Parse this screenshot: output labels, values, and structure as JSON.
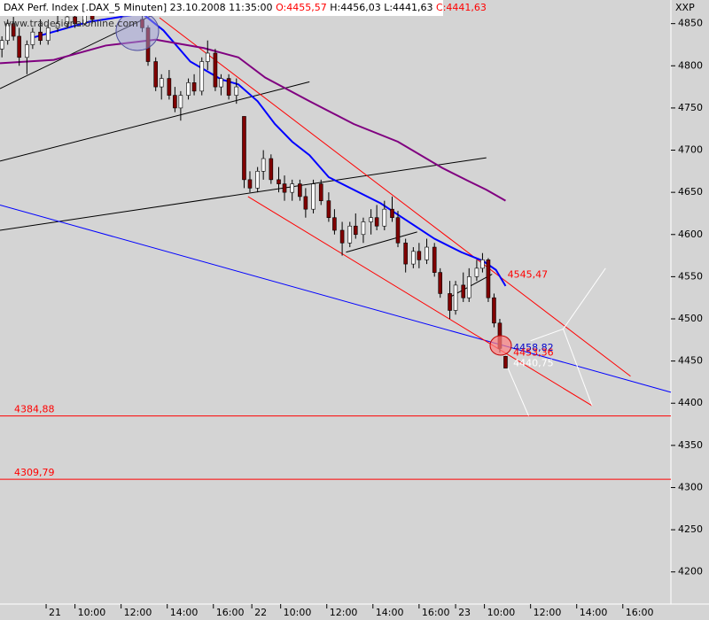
{
  "header": {
    "symbol": "DAX Perf. Index [.DAX_5 Minuten]",
    "datetime": "23.10.2008 11:35:00",
    "open": "O:4455,57",
    "high": "H:4456,03",
    "low": "L:4441,63",
    "close": "C:4441,63",
    "watermark": "www.tradesignalonline.com",
    "corner": "XXP"
  },
  "chart_data": {
    "type": "candlestick",
    "x": [
      1,
      4,
      7,
      10,
      14,
      17,
      21,
      25,
      30,
      35,
      39,
      44,
      48,
      74,
      77,
      81,
      84,
      88,
      91,
      94,
      98,
      101,
      105,
      108,
      112,
      115,
      119,
      123,
      127,
      130,
      134,
      137,
      141,
      145,
      148,
      152,
      156,
      159,
      163,
      167,
      171,
      174,
      178,
      182,
      185,
      189,
      193,
      196,
      200,
      204,
      207,
      211,
      215,
      218,
      222,
      226,
      229,
      234,
      237,
      241,
      244,
      248,
      251,
      254,
      257,
      260,
      263
    ],
    "open": [
      4820,
      4830,
      4850,
      4835,
      4810,
      4825,
      4840,
      4830,
      4845,
      4850,
      4858,
      4850,
      4860,
      4855,
      4845,
      4805,
      4775,
      4785,
      4765,
      4750,
      4765,
      4780,
      4770,
      4805,
      4815,
      4775,
      4785,
      4765,
      4740,
      4665,
      4655,
      4675,
      4690,
      4665,
      4660,
      4650,
      4660,
      4645,
      4630,
      4660,
      4640,
      4620,
      4605,
      4590,
      4610,
      4600,
      4615,
      4620,
      4610,
      4630,
      4620,
      4590,
      4565,
      4580,
      4570,
      4585,
      4555,
      4530,
      4510,
      4540,
      4525,
      4550,
      4560,
      4570,
      4525,
      4495,
      4455.57
    ],
    "high": [
      4835,
      4855,
      4858,
      4845,
      4830,
      4845,
      4855,
      4850,
      4860,
      4865,
      4862,
      4868,
      4870,
      4865,
      4848,
      4810,
      4790,
      4795,
      4775,
      4770,
      4785,
      4790,
      4810,
      4830,
      4820,
      4790,
      4790,
      4785,
      4740,
      4675,
      4680,
      4700,
      4695,
      4680,
      4670,
      4665,
      4665,
      4655,
      4665,
      4665,
      4650,
      4630,
      4615,
      4615,
      4625,
      4620,
      4630,
      4635,
      4640,
      4645,
      4628,
      4595,
      4585,
      4590,
      4595,
      4590,
      4560,
      4545,
      4545,
      4555,
      4560,
      4570,
      4578,
      4572,
      4530,
      4500,
      4456.03
    ],
    "low": [
      4810,
      4825,
      4830,
      4800,
      4790,
      4820,
      4825,
      4825,
      4840,
      4845,
      4845,
      4848,
      4850,
      4840,
      4800,
      4770,
      4760,
      4760,
      4745,
      4735,
      4760,
      4765,
      4765,
      4795,
      4770,
      4765,
      4760,
      4755,
      4655,
      4650,
      4650,
      4665,
      4660,
      4650,
      4640,
      4640,
      4640,
      4620,
      4625,
      4635,
      4615,
      4600,
      4575,
      4585,
      4595,
      4590,
      4600,
      4605,
      4605,
      4615,
      4585,
      4555,
      4560,
      4560,
      4565,
      4550,
      4525,
      4500,
      4505,
      4520,
      4520,
      4545,
      4555,
      4520,
      4490,
      4460,
      4441.63
    ],
    "close": [
      4830,
      4850,
      4835,
      4810,
      4825,
      4840,
      4830,
      4845,
      4850,
      4858,
      4850,
      4860,
      4855,
      4845,
      4805,
      4775,
      4785,
      4765,
      4750,
      4765,
      4780,
      4770,
      4805,
      4815,
      4775,
      4785,
      4765,
      4775,
      4665,
      4655,
      4675,
      4690,
      4665,
      4660,
      4650,
      4660,
      4645,
      4630,
      4660,
      4640,
      4620,
      4605,
      4590,
      4610,
      4600,
      4615,
      4620,
      4610,
      4630,
      4620,
      4590,
      4565,
      4580,
      4570,
      4585,
      4555,
      4530,
      4510,
      4540,
      4525,
      4550,
      4560,
      4570,
      4525,
      4495,
      4465,
      4441.63
    ],
    "xlim": [
      0,
      349
    ],
    "ylim": [
      4164,
      4878
    ],
    "yticks": [
      4200,
      4250,
      4300,
      4350,
      4400,
      4450,
      4500,
      4550,
      4600,
      4650,
      4700,
      4750,
      4800,
      4850
    ],
    "xticks": [
      {
        "value": 24,
        "label": "21"
      },
      {
        "value": 39,
        "label": "10:00"
      },
      {
        "value": 63,
        "label": "12:00"
      },
      {
        "value": 87,
        "label": "14:00"
      },
      {
        "value": 111,
        "label": "16:00"
      },
      {
        "value": 131,
        "label": "22"
      },
      {
        "value": 146,
        "label": "10:00"
      },
      {
        "value": 170,
        "label": "12:00"
      },
      {
        "value": 194,
        "label": "14:00"
      },
      {
        "value": 218,
        "label": "16:00"
      },
      {
        "value": 237,
        "label": "23"
      },
      {
        "value": 252,
        "label": "10:00"
      },
      {
        "value": 276,
        "label": "12:00"
      },
      {
        "value": 300,
        "label": "14:00"
      },
      {
        "value": 324,
        "label": "16:00"
      }
    ],
    "moving_averages": [
      {
        "color": "#0000ff",
        "x": [
          18,
          46,
          74,
          85,
          99,
          115,
          124,
          134,
          143,
          152,
          161,
          171,
          184,
          198,
          212,
          226,
          240,
          251,
          258,
          263
        ],
        "values": [
          4834,
          4852,
          4862,
          4842,
          4805,
          4784,
          4778,
          4758,
          4731,
          4710,
          4694,
          4668,
          4653,
          4637,
          4616,
          4595,
          4579,
          4569,
          4558,
          4539
        ]
      },
      {
        "color": "#800080",
        "x": [
          0,
          28,
          55,
          81,
          106,
          124,
          138,
          161,
          184,
          207,
          230,
          244,
          253,
          263
        ],
        "values": [
          4803,
          4807,
          4824,
          4831,
          4821,
          4810,
          4786,
          4758,
          4731,
          4710,
          4679,
          4663,
          4653,
          4640
        ]
      }
    ],
    "trendlines": [
      {
        "color": "#000000",
        "x": [
          0,
          81
        ],
        "values": [
          4773,
          4862
        ]
      },
      {
        "color": "#000000",
        "x": [
          0,
          161
        ],
        "values": [
          4687,
          4781
        ]
      },
      {
        "color": "#000000",
        "x": [
          0,
          253
        ],
        "values": [
          4605,
          4691
        ]
      },
      {
        "color": "#000000",
        "x": [
          180,
          217
        ],
        "values": [
          4579,
          4603
        ]
      },
      {
        "color": "#000000",
        "x": [
          235,
          256
        ],
        "values": [
          4527,
          4553
        ]
      },
      {
        "color": "#0000ff",
        "x": [
          0,
          349
        ],
        "values": [
          4635,
          4413
        ]
      },
      {
        "color": "#ff0000",
        "x": [
          83,
          328
        ],
        "values": [
          4857,
          4432
        ]
      },
      {
        "color": "#ff0000",
        "x": [
          129,
          308
        ],
        "values": [
          4645,
          4397
        ]
      },
      {
        "color": "#ffffff",
        "x": [
          263,
          275
        ],
        "values": [
          4448,
          4385
        ]
      },
      {
        "color": "#ffffff",
        "x": [
          276,
          293
        ],
        "values": [
          4474,
          4488
        ]
      },
      {
        "color": "#ffffff",
        "x": [
          293,
          308
        ],
        "values": [
          4488,
          4397
        ]
      },
      {
        "color": "#ffffff",
        "x": [
          293,
          315
        ],
        "values": [
          4488,
          4560
        ]
      }
    ],
    "levels": [
      {
        "value": 4384.88,
        "label": "4384,88",
        "color": "#ff0000"
      },
      {
        "value": 4309.79,
        "label": "4309,79",
        "color": "#ff0000"
      }
    ],
    "price_labels": [
      {
        "x": 264,
        "value": 4545.47,
        "label": "4545,47",
        "color": "#ff0000"
      },
      {
        "x": 267,
        "value": 4458.82,
        "label": "4458,82",
        "color": "#0000cc"
      },
      {
        "x": 267,
        "value": 4453.36,
        "label": "4453,36",
        "color": "#ff0000"
      },
      {
        "x": 267,
        "value": 4440.75,
        "label": "4440,75",
        "color": "#ffffff"
      }
    ]
  }
}
